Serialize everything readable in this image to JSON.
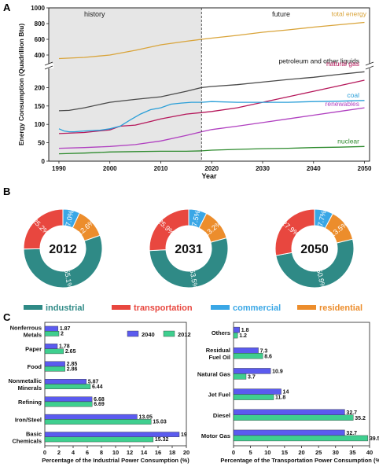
{
  "panel_labels": [
    "A",
    "B",
    "C"
  ],
  "colors": {
    "total": "#d9a43a",
    "petroleum": "#4a4a4a",
    "natural_gas": "#b5175a",
    "coal": "#2a9fd8",
    "renewables": "#b040c0",
    "nuclear": "#2e8b2e",
    "industrial": "#2f8a86",
    "transportation": "#e8473f",
    "commercial": "#3aa7e6",
    "residential": "#ec8d2c",
    "bar_2040": "#5b5bef",
    "bar_2012": "#3fcf8f",
    "history_shade": "#e6e6e6"
  },
  "chart_data": [
    {
      "type": "line",
      "panel": "A",
      "ylabel": "Energy Consumption (Quadrillion Btu)",
      "xlabel": "Year",
      "region_labels": [
        "history",
        "future"
      ],
      "divider_year": 2018,
      "xlim": [
        1988,
        2051
      ],
      "xticks": [
        1990,
        2000,
        2010,
        2020,
        2030,
        2040,
        2050
      ],
      "upper_ylim": [
        300,
        1000
      ],
      "upper_yticks": [
        400,
        600,
        800,
        1000
      ],
      "lower_ylim": [
        0,
        250
      ],
      "lower_yticks": [
        0,
        50,
        100,
        150,
        200
      ],
      "series": [
        {
          "name": "total energy",
          "key": "total",
          "axis": "upper",
          "x": [
            1990,
            1995,
            2000,
            2005,
            2010,
            2015,
            2018,
            2020,
            2025,
            2030,
            2035,
            2040,
            2045,
            2050
          ],
          "y": [
            355,
            370,
            400,
            460,
            530,
            575,
            600,
            615,
            650,
            690,
            720,
            755,
            785,
            815
          ]
        },
        {
          "name": "petroleum and other liquids",
          "key": "petroleum",
          "axis": "lower",
          "x": [
            1990,
            1992,
            1995,
            2000,
            2005,
            2010,
            2015,
            2018,
            2020,
            2025,
            2030,
            2035,
            2040,
            2045,
            2050
          ],
          "y": [
            137,
            138,
            145,
            160,
            168,
            175,
            190,
            200,
            203,
            208,
            215,
            222,
            228,
            236,
            243
          ]
        },
        {
          "name": "natural gas",
          "key": "natural_gas",
          "axis": "lower",
          "x": [
            1990,
            1995,
            2000,
            2002,
            2005,
            2008,
            2010,
            2015,
            2018,
            2020,
            2025,
            2030,
            2035,
            2040,
            2045,
            2050
          ],
          "y": [
            75,
            78,
            85,
            95,
            98,
            108,
            115,
            128,
            132,
            135,
            145,
            160,
            175,
            190,
            205,
            220
          ]
        },
        {
          "name": "coal",
          "key": "coal",
          "axis": "lower",
          "x": [
            1990,
            1991,
            1992,
            1993,
            1995,
            1998,
            2000,
            2002,
            2004,
            2006,
            2008,
            2010,
            2012,
            2014,
            2016,
            2018,
            2020,
            2025,
            2030,
            2035,
            2040,
            2045,
            2050
          ],
          "y": [
            88,
            82,
            80,
            80,
            82,
            84,
            88,
            95,
            112,
            128,
            140,
            145,
            155,
            158,
            160,
            160,
            162,
            160,
            160,
            160,
            162,
            163,
            165
          ]
        },
        {
          "name": "renewables",
          "key": "renewables",
          "axis": "lower",
          "x": [
            1990,
            1995,
            2000,
            2005,
            2010,
            2015,
            2018,
            2020,
            2025,
            2030,
            2035,
            2040,
            2045,
            2050
          ],
          "y": [
            35,
            37,
            40,
            45,
            55,
            70,
            80,
            86,
            95,
            105,
            115,
            125,
            135,
            145
          ]
        },
        {
          "name": "nuclear",
          "key": "nuclear",
          "axis": "lower",
          "x": [
            1990,
            1995,
            2000,
            2005,
            2010,
            2015,
            2018,
            2020,
            2025,
            2030,
            2035,
            2040,
            2045,
            2050
          ],
          "y": [
            20,
            22,
            25,
            26,
            27,
            27,
            28,
            30,
            32,
            34,
            35,
            37,
            38,
            40
          ]
        }
      ]
    },
    {
      "type": "pie",
      "panel": "B",
      "style": "donut",
      "charts": [
        {
          "label": "2012",
          "values": [
            55.1,
            25.2,
            7.0,
            12.6
          ],
          "value_labels": [
            "55.1%",
            "25.2%",
            "7.0%",
            "12.6%"
          ]
        },
        {
          "label": "2031",
          "values": [
            53.5,
            25.9,
            7.5,
            13.2
          ],
          "value_labels": [
            "53.5%",
            "25.9%",
            "7.5%",
            "13.2%"
          ]
        },
        {
          "label": "2050",
          "values": [
            50.9,
            27.9,
            7.7,
            13.5
          ],
          "value_labels": [
            "50.9%",
            "27.9%",
            "7.7%",
            "13.5%"
          ]
        }
      ],
      "categories": [
        "industrial",
        "transportation",
        "commercial",
        "residential"
      ],
      "legend": [
        "industrial",
        "transportation",
        "commercial",
        "residential"
      ]
    },
    {
      "type": "bar",
      "panel": "C-left",
      "orientation": "horizontal",
      "xlabel": "Percentage of the Industrial Power Consumption (%)",
      "xlim": [
        0,
        20
      ],
      "xticks": [
        0,
        2,
        4,
        6,
        8,
        10,
        12,
        14,
        16,
        18,
        20
      ],
      "categories": [
        "Nonferrous Metals",
        "Paper",
        "Food",
        "Nonmetallic Minerals",
        "Refining",
        "Iron/Steel",
        "Basic Chemicals"
      ],
      "category_lines": [
        [
          "Nonferrous",
          "Metals"
        ],
        [
          "Paper"
        ],
        [
          "Food"
        ],
        [
          "Nonmetallic",
          "Minerals"
        ],
        [
          "Refining"
        ],
        [
          "Iron/Steel"
        ],
        [
          "Basic",
          "Chemicals"
        ]
      ],
      "series": [
        {
          "name": "2040",
          "values": [
            1.87,
            1.78,
            2.85,
            5.87,
            6.68,
            13.05,
            19
          ],
          "labels": [
            "1.87",
            "1.78",
            "2.85",
            "5.87",
            "6.68",
            "13.05",
            "19"
          ]
        },
        {
          "name": "2012",
          "values": [
            2,
            2.65,
            2.86,
            6.44,
            6.69,
            15.03,
            15.32
          ],
          "labels": [
            "2",
            "2.65",
            "2.86",
            "6.44",
            "6.69",
            "15.03",
            "15.32"
          ]
        }
      ],
      "legend": "top-right"
    },
    {
      "type": "bar",
      "panel": "C-right",
      "orientation": "horizontal",
      "xlabel": "Percentage of the Transportation Power Consumption (%)",
      "xlim": [
        0,
        40
      ],
      "xticks": [
        0,
        5,
        10,
        15,
        20,
        25,
        30,
        35,
        40
      ],
      "categories": [
        "Others",
        "Residual Fuel Oil",
        "Natural Gas",
        "Jet Fuel",
        "Diesel",
        "Motor Gas"
      ],
      "category_lines": [
        [
          "Others"
        ],
        [
          "Residual",
          "Fuel Oil"
        ],
        [
          "Natural Gas"
        ],
        [
          "Jet Fuel"
        ],
        [
          "Diesel"
        ],
        [
          "Motor Gas"
        ]
      ],
      "series": [
        {
          "name": "2040",
          "values": [
            1.8,
            7.3,
            10.9,
            14,
            32.7,
            32.7
          ],
          "labels": [
            "1.8",
            "7.3",
            "10.9",
            "14",
            "32.7",
            "32.7"
          ]
        },
        {
          "name": "2012",
          "values": [
            1.2,
            8.6,
            3.7,
            11.8,
            35.2,
            39.5
          ],
          "labels": [
            "1.2",
            "8.6",
            "3.7",
            "11.8",
            "35.2",
            "39.5"
          ]
        }
      ]
    }
  ]
}
